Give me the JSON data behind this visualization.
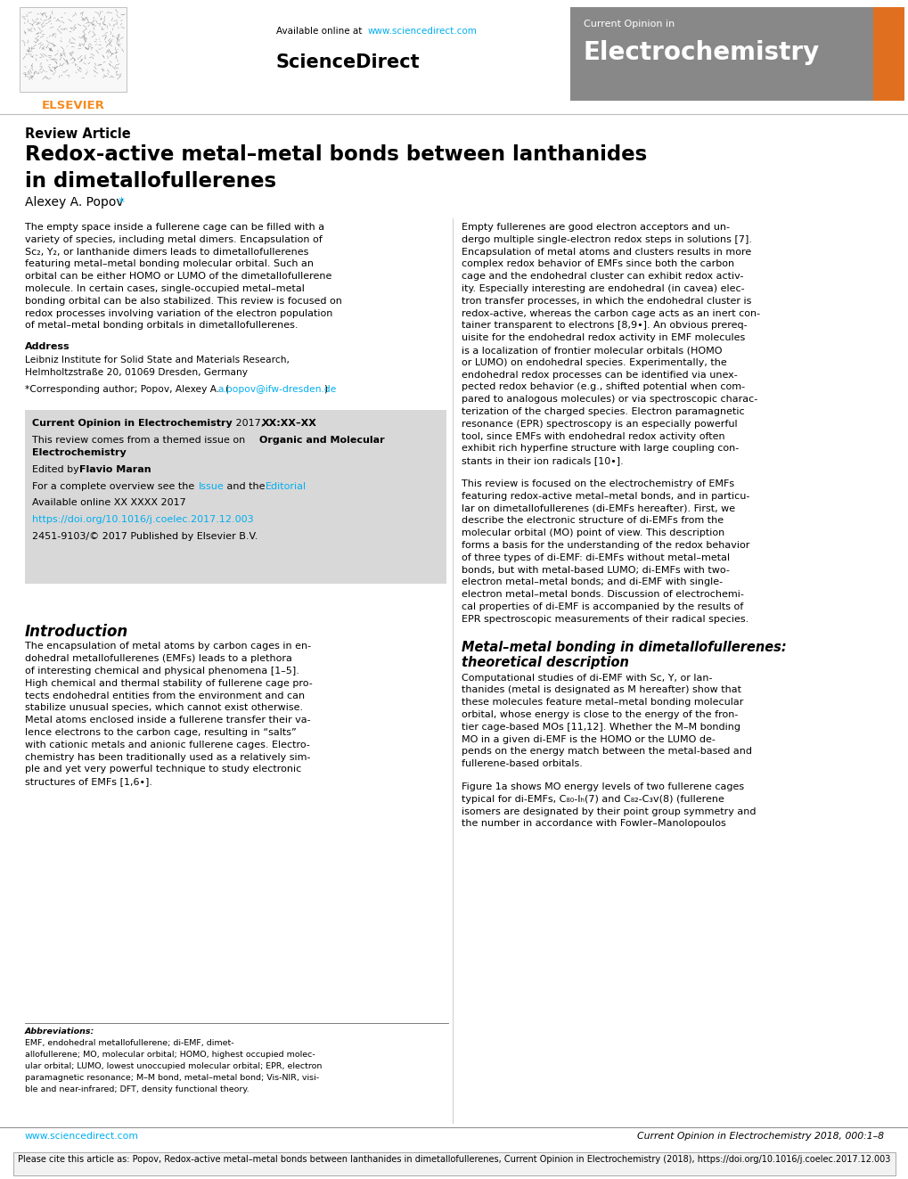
{
  "title_review": "Review Article",
  "title_main_line1": "Redox-active metal–metal bonds between lanthanides",
  "title_main_line2": "in dimetallofullerenes",
  "author": "Alexey A. Popov",
  "author_asterisk": "*",
  "header_available_plain": "Available online at ",
  "header_url": "www.sciencedirect.com",
  "header_sd": "ScienceDirect",
  "journal_label_small": "Current Opinion in",
  "journal_label_large": "Electrochemistry",
  "address_label": "Address",
  "address_line1": "Leibniz Institute for Solid State and Materials Research,",
  "address_line2": "Helmholtzstraße 20, 01069 Dresden, Germany",
  "corresponding_plain": "*Corresponding author; Popov, Alexey A.  (",
  "corresponding_email": "a.popov@ifw-dresden.de",
  "corresponding_end": ")",
  "box_journal_bold": "Current Opinion in Electrochemistry",
  "box_journal_plain": " 2017, ",
  "box_journal_bold2": "XX:XX–XX",
  "box_themed_plain": "This review comes from a themed issue on ",
  "box_themed_bold": "Organic and Molecular",
  "box_themed_bold2": "Electrochemistry",
  "box_edited_plain": "Edited by ",
  "box_edited_bold": "Flavio Maran",
  "box_overview_plain": "For a complete overview see the ",
  "box_overview_link1": "Issue",
  "box_overview_mid": " and the ",
  "box_overview_link2": "Editorial",
  "box_available": "Available online XX XXXX 2017",
  "box_doi": "https://doi.org/10.1016/j.coelec.2017.12.003",
  "box_issn": "2451-9103/© 2017 Published by Elsevier B.V.",
  "intro_title": "Introduction",
  "mm_title_line1": "Metal–metal bonding in dimetallofullerenes:",
  "mm_title_line2": "theoretical description",
  "abbrev_label": "Abbreviations:",
  "abbrev_text": "EMF, endohedral metallofullerene; di-EMF, dimetallofullerene; MO, molecular orbital; HOMO, highest occupied molecular orbital; LUMO, lowest unoccupied molecular orbital; EPR, electron paramagnetic resonance; M–M bond, metal–metal bond; Vis-NIR, visible and near-infrared; DFT, density functional theory.",
  "footer_url": "www.sciencedirect.com",
  "footer_journal": "Current Opinion in Electrochemistry 2018, 000:1–8",
  "cite_text": "Please cite this article as: Popov, Redox-active metal–metal bonds between lanthanides in dimetallofullerenes, Current Opinion in Electrochemistry (2018), https://doi.org/10.1016/j.coelec.2017.12.003",
  "elsevier_color": "#F68B1F",
  "link_color": "#00AEEF",
  "journal_bg": "#888888",
  "box_bg": "#D8D8D8",
  "left_abs_lines": [
    "The empty space inside a fullerene cage can be filled with a",
    "variety of species, including metal dimers. Encapsulation of",
    "Sc₂, Y₂, or lanthanide dimers leads to dimetallofullerenes",
    "featuring metal–metal bonding molecular orbital. Such an",
    "orbital can be either HOMO or LUMO of the dimetallofullerene",
    "molecule. In certain cases, single-occupied metal–metal",
    "bonding orbital can be also stabilized. This review is focused on",
    "redox processes involving variation of the electron population",
    "of metal–metal bonding orbitals in dimetallofullerenes."
  ],
  "right_abs_lines": [
    "Empty fullerenes are good electron acceptors and un-",
    "dergo multiple single-electron redox steps in solutions [7].",
    "Encapsulation of metal atoms and clusters results in more",
    "complex redox behavior of EMFs since both the carbon",
    "cage and the endohedral cluster can exhibit redox activ-",
    "ity. Especially interesting are endohedral (in cavea) elec-",
    "tron transfer processes, in which the endohedral cluster is",
    "redox-active, whereas the carbon cage acts as an inert con-",
    "tainer transparent to electrons [8,9•]. An obvious prereq-",
    "uisite for the endohedral redox activity in EMF molecules",
    "is a localization of frontier molecular orbitals (HOMO",
    "or LUMO) on endohedral species. Experimentally, the",
    "endohedral redox processes can be identified via unex-",
    "pected redox behavior (e.g., shifted potential when com-",
    "pared to analogous molecules) or via spectroscopic charac-",
    "terization of the charged species. Electron paramagnetic",
    "resonance (EPR) spectroscopy is an especially powerful",
    "tool, since EMFs with endohedral redox activity often",
    "exhibit rich hyperfine structure with large coupling con-",
    "stants in their ion radicals [10•]."
  ],
  "right_para2_lines": [
    "This review is focused on the electrochemistry of EMFs",
    "featuring redox-active metal–metal bonds, and in particu-",
    "lar on dimetallofullerenes (di-EMFs hereafter). First, we",
    "describe the electronic structure of di-EMFs from the",
    "molecular orbital (MO) point of view. This description",
    "forms a basis for the understanding of the redox behavior",
    "of three types of di-EMF: di-EMFs without metal–metal",
    "bonds, but with metal-based LUMO; di-EMFs with two-",
    "electron metal–metal bonds; and di-EMF with single-",
    "electron metal–metal bonds. Discussion of electrochemi-",
    "cal properties of di-EMF is accompanied by the results of",
    "EPR spectroscopic measurements of their radical species."
  ],
  "mm_text_lines": [
    "Computational studies of di-EMF with Sc, Y, or lan-",
    "thanides (metal is designated as M hereafter) show that",
    "these molecules feature metal–metal bonding molecular",
    "orbital, whose energy is close to the energy of the fron-",
    "tier cage-based MOs [11,12]. Whether the M–M bonding",
    "MO in a given di-EMF is the HOMO or the LUMO de-",
    "pends on the energy match between the metal-based and",
    "fullerene-based orbitals."
  ],
  "fig1_lines": [
    "Figure 1a shows MO energy levels of two fullerene cages",
    "typical for di-EMFs, C₈₀-Iₕ(7) and C₈₂-C₃v(8) (fullerene",
    "isomers are designated by their point group symmetry and",
    "the number in accordance with Fowler–Manolopoulos"
  ],
  "intro_lines": [
    "The encapsulation of metal atoms by carbon cages in en-",
    "dohedral metallofullerenes (EMFs) leads to a plethora",
    "of interesting chemical and physical phenomena [1–5].",
    "High chemical and thermal stability of fullerene cage pro-",
    "tects endohedral entities from the environment and can",
    "stabilize unusual species, which cannot exist otherwise.",
    "Metal atoms enclosed inside a fullerene transfer their va-",
    "lence electrons to the carbon cage, resulting in “salts”",
    "with cationic metals and anionic fullerene cages. Electro-",
    "chemistry has been traditionally used as a relatively sim-",
    "ple and yet very powerful technique to study electronic",
    "structures of EMFs [1,6•]."
  ],
  "abbrev_lines": [
    "EMF, endohedral metallofullerene; di-EMF, dimet-",
    "allofullerene; MO, molecular orbital; HOMO, highest occupied molec-",
    "ular orbital; LUMO, lowest unoccupied molecular orbital; EPR, electron",
    "paramagnetic resonance; M–M bond, metal–metal bond; Vis-NIR, visi-",
    "ble and near-infrared; DFT, density functional theory."
  ]
}
